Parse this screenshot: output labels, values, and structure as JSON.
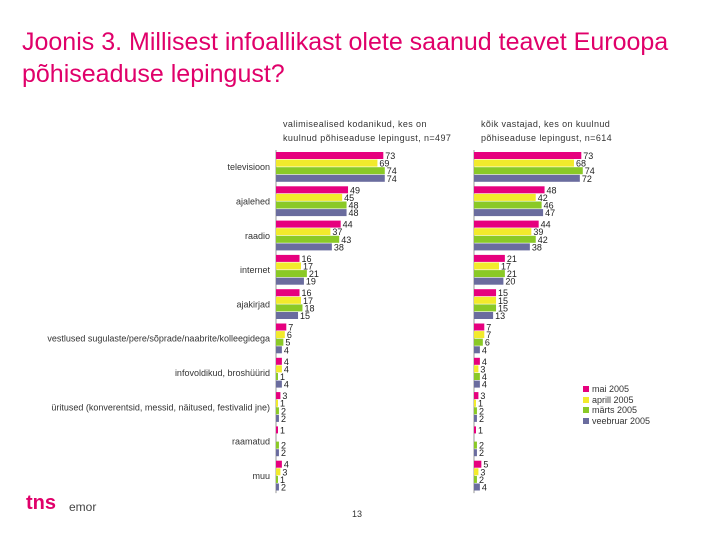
{
  "title": "Joonis 3. Millisest infoallikast olete saanud teavet Euroopa põhiseaduse lepingust?",
  "page_number": "13",
  "logo": {
    "main": "tns",
    "sub": "emor"
  },
  "colors": {
    "mai_2005": "#e6007e",
    "aprill_2005": "#f2ea2c",
    "marts_2005": "#8ac926",
    "veebruar_2005": "#6a6c9e"
  },
  "chart_data": {
    "type": "bar",
    "orientation": "horizontal",
    "categories": [
      "televisioon",
      "ajalehed",
      "raadio",
      "internet",
      "ajakirjad",
      "vestlused sugulaste/pere/sõprade/naabrite/kolleegidega",
      "infovoldikud, broshüürid",
      "üritused (konverentsid, messid, näitused, festivalid jne)",
      "raamatud",
      "muu"
    ],
    "panels": [
      {
        "title": [
          "valimisealised kodanikud, kes on",
          "kuulnud põhiseaduse lepingust, n=497"
        ],
        "series": [
          {
            "name": "mai 2005",
            "values": [
              73,
              49,
              44,
              16,
              16,
              7,
              4,
              3,
              1,
              4
            ]
          },
          {
            "name": "aprill 2005",
            "values": [
              69,
              45,
              37,
              17,
              17,
              6,
              4,
              1,
              null,
              3
            ]
          },
          {
            "name": "märts 2005",
            "values": [
              74,
              48,
              43,
              21,
              18,
              5,
              1,
              2,
              2,
              1
            ]
          },
          {
            "name": "veebruar 2005",
            "values": [
              74,
              48,
              38,
              19,
              15,
              4,
              4,
              2,
              2,
              2
            ]
          }
        ]
      },
      {
        "title": [
          "kõik vastajad, kes on kuulnud",
          "põhiseaduse lepingust, n=614"
        ],
        "series": [
          {
            "name": "mai 2005",
            "values": [
              73,
              48,
              44,
              21,
              15,
              7,
              4,
              3,
              1,
              5
            ]
          },
          {
            "name": "aprill 2005",
            "values": [
              68,
              42,
              39,
              17,
              15,
              7,
              3,
              1,
              null,
              3
            ]
          },
          {
            "name": "märts 2005",
            "values": [
              74,
              46,
              42,
              21,
              15,
              6,
              4,
              2,
              2,
              2
            ]
          },
          {
            "name": "veebruar 2005",
            "values": [
              72,
              47,
              38,
              20,
              13,
              4,
              4,
              2,
              2,
              4
            ]
          }
        ]
      }
    ],
    "legend": {
      "entries": [
        "mai 2005",
        "aprill 2005",
        "märts 2005",
        "veebruar 2005"
      ],
      "position": "bottom-right"
    },
    "xlim": [
      0,
      100
    ],
    "grid": false
  }
}
